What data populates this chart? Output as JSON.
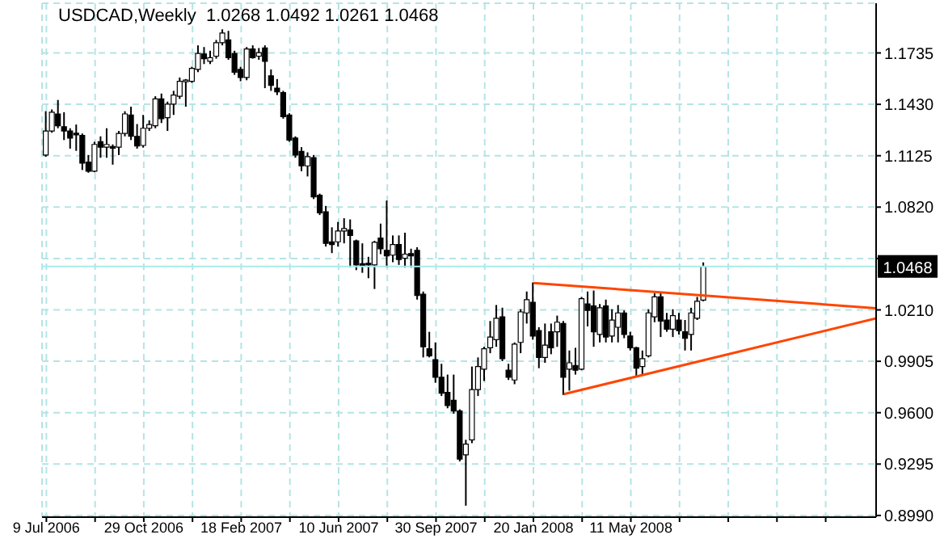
{
  "chart_data": {
    "type": "candlestick",
    "title": "USDCAD,Weekly  1.0268 1.0492 1.0261 1.0468",
    "x": [
      "2006-07-09",
      "2006-07-16",
      "2006-07-23",
      "2006-07-30",
      "2006-08-06",
      "2006-08-13",
      "2006-08-20",
      "2006-08-27",
      "2006-09-03",
      "2006-09-10",
      "2006-09-17",
      "2006-09-24",
      "2006-10-01",
      "2006-10-08",
      "2006-10-15",
      "2006-10-22",
      "2006-10-29",
      "2006-11-05",
      "2006-11-12",
      "2006-11-19",
      "2006-11-26",
      "2006-12-03",
      "2006-12-10",
      "2006-12-17",
      "2006-12-24",
      "2006-12-31",
      "2007-01-07",
      "2007-01-14",
      "2007-01-21",
      "2007-01-28",
      "2007-02-04",
      "2007-02-11",
      "2007-02-18",
      "2007-02-25",
      "2007-03-04",
      "2007-03-11",
      "2007-03-18",
      "2007-03-25",
      "2007-04-01",
      "2007-04-08",
      "2007-04-15",
      "2007-04-22",
      "2007-04-29",
      "2007-05-06",
      "2007-05-13",
      "2007-05-20",
      "2007-05-27",
      "2007-06-03",
      "2007-06-10",
      "2007-06-17",
      "2007-06-24",
      "2007-07-01",
      "2007-07-08",
      "2007-07-15",
      "2007-07-22",
      "2007-07-29",
      "2007-08-05",
      "2007-08-12",
      "2007-08-19",
      "2007-08-26",
      "2007-09-02",
      "2007-09-09",
      "2007-09-16",
      "2007-09-23",
      "2007-09-30",
      "2007-10-07",
      "2007-10-14",
      "2007-10-21",
      "2007-10-28",
      "2007-11-04",
      "2007-11-11",
      "2007-11-18",
      "2007-11-25",
      "2007-12-02",
      "2007-12-09",
      "2007-12-16",
      "2007-12-23",
      "2007-12-30",
      "2008-01-06",
      "2008-01-13",
      "2008-01-20",
      "2008-01-27",
      "2008-02-03",
      "2008-02-10",
      "2008-02-17",
      "2008-02-24",
      "2008-03-02",
      "2008-03-09",
      "2008-03-16",
      "2008-03-23",
      "2008-03-30",
      "2008-04-06",
      "2008-04-13",
      "2008-04-20",
      "2008-04-27",
      "2008-05-04",
      "2008-05-11",
      "2008-05-18",
      "2008-05-25",
      "2008-06-01",
      "2008-06-08",
      "2008-06-15",
      "2008-06-22",
      "2008-06-29",
      "2008-07-06",
      "2008-07-13",
      "2008-07-20",
      "2008-07-27",
      "2008-08-03"
    ],
    "ohlc": [
      [
        1.1129,
        1.1389,
        1.1119,
        1.1272
      ],
      [
        1.1272,
        1.1399,
        1.1262,
        1.1383
      ],
      [
        1.1373,
        1.1456,
        1.1288,
        1.1303
      ],
      [
        1.1297,
        1.1383,
        1.1218,
        1.1272
      ],
      [
        1.1272,
        1.1288,
        1.1167,
        1.123
      ],
      [
        1.1257,
        1.131,
        1.1154,
        1.1249
      ],
      [
        1.1246,
        1.1257,
        1.104,
        1.1081
      ],
      [
        1.1087,
        1.1129,
        1.1024,
        1.1033
      ],
      [
        1.1033,
        1.1208,
        1.1027,
        1.1192
      ],
      [
        1.1208,
        1.124,
        1.1113,
        1.1176
      ],
      [
        1.1176,
        1.1288,
        1.1113,
        1.1192
      ],
      [
        1.118,
        1.1192,
        1.1072,
        1.117
      ],
      [
        1.1176,
        1.1272,
        1.1129,
        1.1257
      ],
      [
        1.1257,
        1.1389,
        1.124,
        1.1373
      ],
      [
        1.1367,
        1.1416,
        1.1218,
        1.124
      ],
      [
        1.124,
        1.1313,
        1.1167,
        1.1183
      ],
      [
        1.1186,
        1.1367,
        1.1173,
        1.1288
      ],
      [
        1.1288,
        1.1335,
        1.1272,
        1.131
      ],
      [
        1.1303,
        1.1478,
        1.1288,
        1.1462
      ],
      [
        1.1462,
        1.1494,
        1.1319,
        1.1345
      ],
      [
        1.1351,
        1.1446,
        1.1272,
        1.1431
      ],
      [
        1.1431,
        1.151,
        1.1367,
        1.1485
      ],
      [
        1.1478,
        1.1589,
        1.1462,
        1.1567
      ],
      [
        1.1564,
        1.158,
        1.1416,
        1.1573
      ],
      [
        1.1567,
        1.1653,
        1.1558,
        1.1643
      ],
      [
        1.1637,
        1.178,
        1.1621,
        1.1732
      ],
      [
        1.1729,
        1.177,
        1.1669,
        1.1701
      ],
      [
        1.1685,
        1.1748,
        1.1669,
        1.1707
      ],
      [
        1.1716,
        1.1812,
        1.1701,
        1.1796
      ],
      [
        1.1796,
        1.1875,
        1.178,
        1.1853
      ],
      [
        1.1812,
        1.1866,
        1.1694,
        1.1707
      ],
      [
        1.1732,
        1.1748,
        1.1605,
        1.1621
      ],
      [
        1.1637,
        1.1653,
        1.1567,
        1.1589
      ],
      [
        1.1589,
        1.177,
        1.1573,
        1.1758
      ],
      [
        1.1758,
        1.178,
        1.1701,
        1.1707
      ],
      [
        1.1716,
        1.1764,
        1.1694,
        1.1737
      ],
      [
        1.1764,
        1.178,
        1.1526,
        1.1685
      ],
      [
        1.1599,
        1.1637,
        1.151,
        1.1542
      ],
      [
        1.1526,
        1.158,
        1.1485,
        1.1504
      ],
      [
        1.15,
        1.151,
        1.1345,
        1.1357
      ],
      [
        1.1367,
        1.1377,
        1.1208,
        1.1218
      ],
      [
        1.123,
        1.124,
        1.1113,
        1.1129
      ],
      [
        1.1151,
        1.1176,
        1.1033,
        1.1065
      ],
      [
        1.1065,
        1.1145,
        1.1002,
        1.1119
      ],
      [
        1.1113,
        1.1129,
        1.0868,
        1.0881
      ],
      [
        1.089,
        1.09,
        1.0773,
        1.0786
      ],
      [
        1.0792,
        1.0827,
        1.0586,
        1.0605
      ],
      [
        1.0614,
        1.07,
        1.0547,
        1.0598
      ],
      [
        1.0614,
        1.0732,
        1.0586,
        1.0678
      ],
      [
        1.0678,
        1.0754,
        1.0605,
        1.0693
      ],
      [
        1.0684,
        1.0747,
        1.0462,
        1.0652
      ],
      [
        1.062,
        1.0627,
        1.0446,
        1.0477
      ],
      [
        1.0484,
        1.0605,
        1.043,
        1.0474
      ],
      [
        1.0481,
        1.0525,
        1.0398,
        1.0477
      ],
      [
        1.0477,
        1.062,
        1.0334,
        1.0611
      ],
      [
        1.0636,
        1.0722,
        1.0541,
        1.0573
      ],
      [
        1.0563,
        1.0859,
        1.0462,
        1.0531
      ],
      [
        1.0535,
        1.0652,
        1.0493,
        1.0598
      ],
      [
        1.0598,
        1.0652,
        1.0477,
        1.0509
      ],
      [
        1.0516,
        1.0668,
        1.0461,
        1.0541
      ],
      [
        1.0544,
        1.0573,
        1.0461,
        1.0531
      ],
      [
        1.0563,
        1.0582,
        1.0271,
        1.0296
      ],
      [
        1.0303,
        1.0319,
        0.9928,
        0.9991
      ],
      [
        0.9979,
        1.008,
        0.9928,
        0.9937
      ],
      [
        0.9915,
        1.0017,
        0.9778,
        0.981
      ],
      [
        0.981,
        0.989,
        0.9699,
        0.9715
      ],
      [
        0.9721,
        0.9826,
        0.9626,
        0.9642
      ],
      [
        0.9674,
        0.9826,
        0.9594,
        0.961
      ],
      [
        0.961,
        0.962,
        0.9311,
        0.9324
      ],
      [
        0.935,
        0.9439,
        0.9048,
        0.9413
      ],
      [
        0.9439,
        0.9874,
        0.9419,
        0.9737
      ],
      [
        0.9737,
        0.9928,
        0.9699,
        0.9874
      ],
      [
        0.9858,
        0.9991,
        0.9788,
        0.9979
      ],
      [
        0.9985,
        1.0144,
        0.9953,
        1.0049
      ],
      [
        1.0033,
        1.0239,
        0.9991,
        1.016
      ],
      [
        1.0169,
        1.0223,
        0.9906,
        0.9921
      ],
      [
        0.9852,
        0.989,
        0.9794,
        0.981
      ],
      [
        0.9794,
        1.0017,
        0.9769,
        1.0007
      ],
      [
        1.0017,
        1.0214,
        0.9953,
        1.0198
      ],
      [
        1.0192,
        1.0319,
        1.0129,
        1.0271
      ],
      [
        1.0255,
        1.0373,
        1.0033,
        1.0055
      ],
      [
        1.0087,
        1.0107,
        0.9864,
        0.9928
      ],
      [
        0.9928,
        1.0129,
        0.9896,
        1.0001
      ],
      [
        1.008,
        1.0129,
        0.9947,
        0.9985
      ],
      [
        1.008,
        1.0176,
        0.9991,
        1.0137
      ],
      [
        1.0129,
        1.0144,
        0.9705,
        0.981
      ],
      [
        0.9858,
        0.9969,
        0.9731,
        0.9896
      ],
      [
        0.988,
        0.9985,
        0.9826,
        0.9852
      ],
      [
        0.9858,
        1.0287,
        0.9852,
        1.0277
      ],
      [
        1.0245,
        1.0319,
        1.0112,
        1.0207
      ],
      [
        1.0233,
        1.0325,
        0.9991,
        1.008
      ],
      [
        1.0064,
        1.0245,
        1.0017,
        1.0223
      ],
      [
        1.0233,
        1.0271,
        1.0017,
        1.0049
      ],
      [
        1.0055,
        1.0214,
        1.0017,
        1.015
      ],
      [
        1.0107,
        1.0239,
        1.0017,
        1.0192
      ],
      [
        1.0192,
        1.0207,
        1.0042,
        1.0064
      ],
      [
        1.0055,
        1.008,
        0.9969,
        0.9985
      ],
      [
        0.9985,
        0.9991,
        0.981,
        0.9864
      ],
      [
        0.9874,
        0.9969,
        0.9826,
        0.9921
      ],
      [
        0.9937,
        1.0214,
        0.9928,
        1.0192
      ],
      [
        1.0169,
        1.0309,
        1.0137,
        1.0287
      ],
      [
        1.0287,
        1.0309,
        1.0049,
        1.0144
      ],
      [
        1.015,
        1.0192,
        1.008,
        1.0096
      ],
      [
        1.0096,
        1.0214,
        1.0049,
        1.0176
      ],
      [
        1.015,
        1.0192,
        1.0064,
        1.0087
      ],
      [
        1.008,
        1.015,
        0.9969,
        1.0042
      ],
      [
        1.0064,
        1.0223,
        0.9969,
        1.0192
      ],
      [
        1.016,
        1.0287,
        1.015,
        1.0261
      ],
      [
        1.0268,
        1.0492,
        1.0261,
        1.0468
      ]
    ],
    "series": [
      {
        "type": "line",
        "color": "#ff4500",
        "x": [
          "2008-01-20",
          "2009-02-17"
        ],
        "values": [
          1.037,
          1.022
        ]
      },
      {
        "type": "line",
        "color": "#ff4500",
        "x": [
          "2008-02-24",
          "2009-02-17"
        ],
        "values": [
          0.971,
          1.016
        ]
      }
    ],
    "marker": "none",
    "xlim": [
      "2006-07-04",
      "2009-02-17"
    ],
    "xticks": [
      {
        "value": "2006-07-09",
        "label": "9 Jul 2006"
      },
      {
        "value": "2006-09-03",
        "label": null
      },
      {
        "value": "2006-10-29",
        "label": "29 Oct 2006"
      },
      {
        "value": "2006-12-24",
        "label": null
      },
      {
        "value": "2007-02-18",
        "label": "18 Feb 2007"
      },
      {
        "value": "2007-04-15",
        "label": null
      },
      {
        "value": "2007-06-10",
        "label": "10 Jun 2007"
      },
      {
        "value": "2007-08-05",
        "label": null
      },
      {
        "value": "2007-09-30",
        "label": "30 Sep 2007"
      },
      {
        "value": "2007-11-25",
        "label": null
      },
      {
        "value": "2008-01-20",
        "label": "20 Jan 2008"
      },
      {
        "value": "2008-03-16",
        "label": null
      },
      {
        "value": "2008-05-11",
        "label": "11 May 2008"
      },
      {
        "value": "2008-07-06",
        "label": null
      },
      {
        "value": "2008-08-31",
        "label": null
      },
      {
        "value": "2008-10-26",
        "label": null
      },
      {
        "value": "2008-12-21",
        "label": null
      }
    ],
    "ylim": [
      0.898,
      1.203
    ],
    "yticks": [
      {
        "value": 0.899,
        "label": "0.8990"
      },
      0.9295,
      {
        "value": 0.96,
        "label": "0.9600"
      },
      0.9905,
      {
        "value": 1.021,
        "label": "1.0210"
      },
      {
        "value": 1.0515,
        "label": null
      },
      {
        "value": 1.082,
        "label": "1.0820"
      },
      1.1125,
      {
        "value": 1.143,
        "label": "1.1430"
      },
      1.1735
    ],
    "ref_lines": [
      {
        "axis": "y",
        "value": 1.0468,
        "label": "1.0468",
        "color": "#a8ecec"
      }
    ],
    "grid": true
  }
}
